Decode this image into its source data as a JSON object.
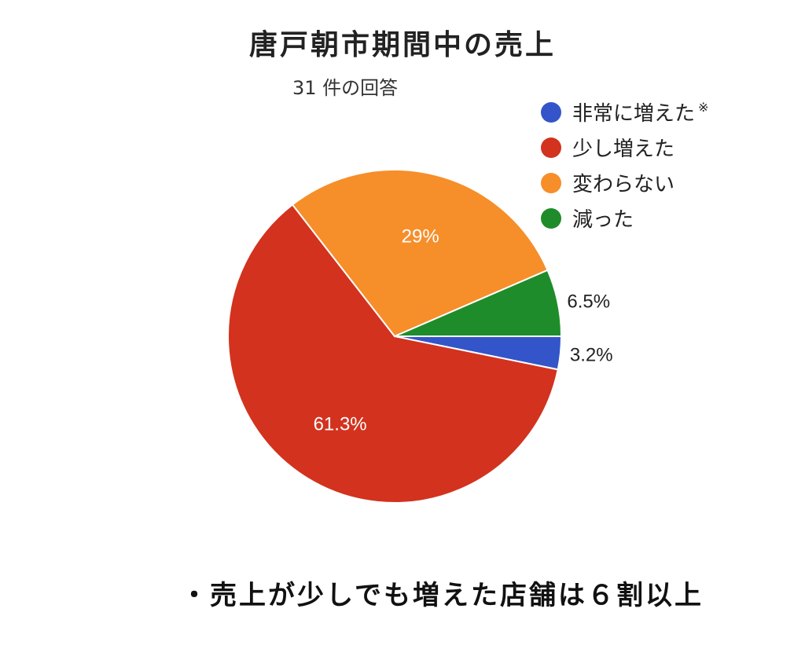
{
  "chart_data": {
    "type": "pie",
    "title": "唐戸朝市期間中の売上",
    "subtitle": "31 件の回答",
    "legend_position": "top-right",
    "note_mark": "※",
    "slices": [
      {
        "name": "非常に増えた",
        "value": 3.2,
        "label": "3.2%",
        "color": "#3355c9"
      },
      {
        "name": "少し増えた",
        "value": 61.3,
        "label": "61.3%",
        "color": "#d3321e"
      },
      {
        "name": "変わらない",
        "value": 29,
        "label": "29%",
        "color": "#f68e2a"
      },
      {
        "name": "減った",
        "value": 6.5,
        "label": "6.5%",
        "color": "#1e8c2a"
      }
    ]
  },
  "caption": "・売上が少しでも増えた店舗は６割以上"
}
